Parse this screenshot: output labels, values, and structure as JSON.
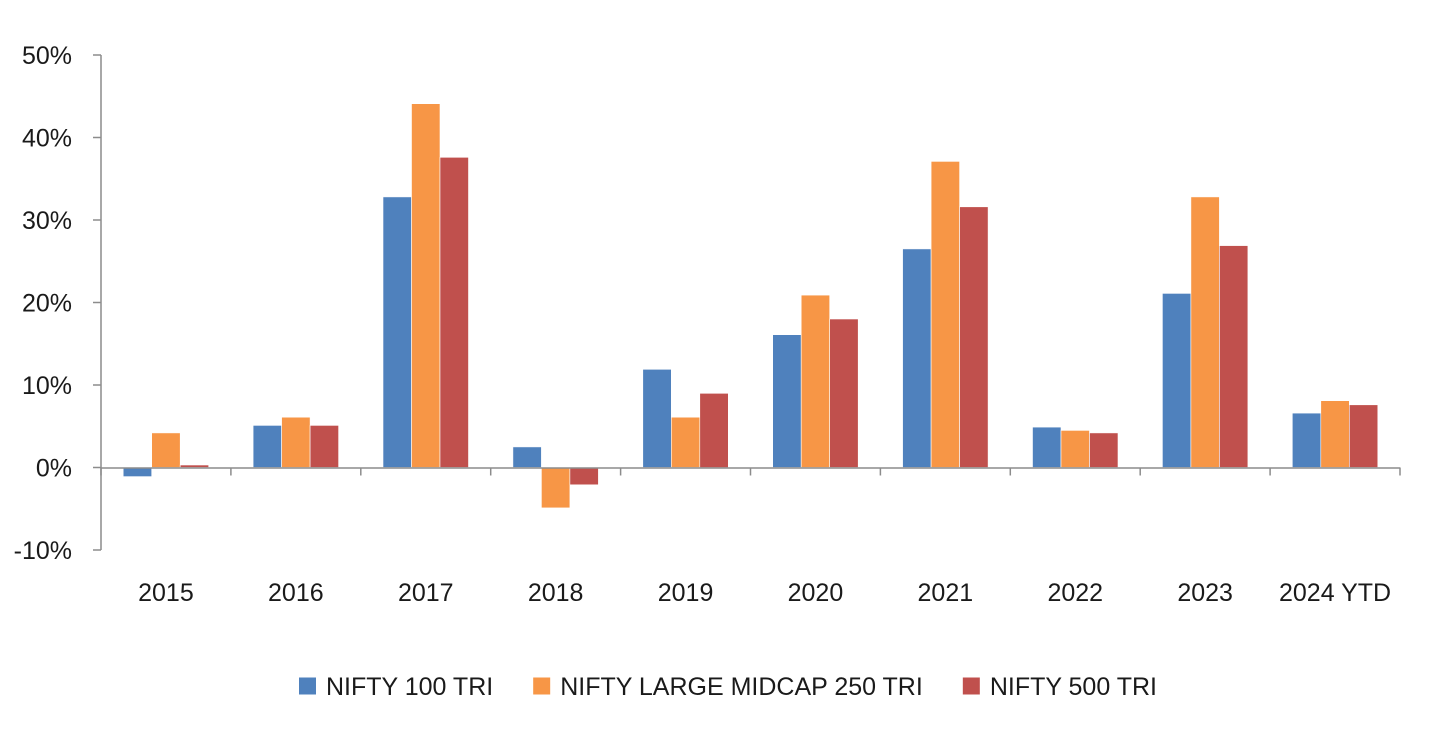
{
  "chart_data": {
    "type": "bar",
    "title": "",
    "xlabel": "",
    "ylabel": "",
    "categories": [
      "2015",
      "2016",
      "2017",
      "2018",
      "2019",
      "2020",
      "2021",
      "2022",
      "2023",
      "2024 YTD"
    ],
    "series": [
      {
        "name": "NIFTY 100 TRI",
        "color": "#4f81bd",
        "values": [
          -1.1,
          5.1,
          32.8,
          2.5,
          11.9,
          16.1,
          26.5,
          4.9,
          21.1,
          6.6
        ]
      },
      {
        "name": "NIFTY LARGE MIDCAP 250 TRI",
        "color": "#f79646",
        "values": [
          4.2,
          6.1,
          44.1,
          -4.9,
          6.1,
          20.9,
          37.1,
          4.5,
          32.8,
          8.1
        ]
      },
      {
        "name": "NIFTY 500 TRI",
        "color": "#c0504d",
        "values": [
          0.3,
          5.1,
          37.6,
          -2.1,
          9.0,
          18.0,
          31.6,
          4.2,
          26.9,
          7.6
        ]
      }
    ],
    "ylim": [
      -10,
      50
    ],
    "yticks": [
      -10,
      0,
      10,
      20,
      30,
      40,
      50
    ],
    "ytick_labels": [
      "-10%",
      "0%",
      "10%",
      "20%",
      "30%",
      "40%",
      "50%"
    ],
    "grid": false,
    "legend_position": "bottom-center"
  }
}
